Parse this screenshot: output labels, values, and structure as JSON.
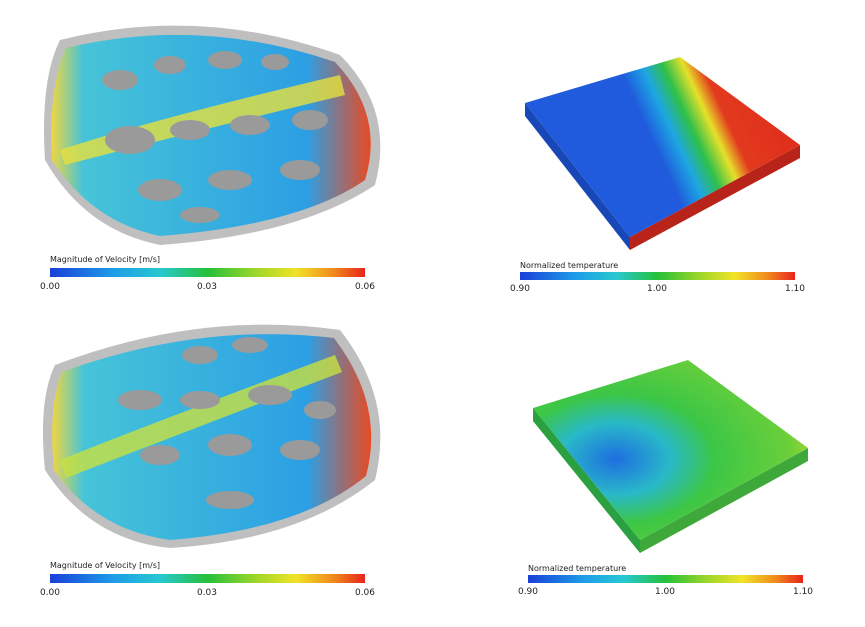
{
  "panels": [
    {
      "colorbar": {
        "title": "Magnitude of Velocity [m/s]",
        "ticks": [
          "0.00",
          "0.03",
          "0.06"
        ]
      }
    },
    {
      "colorbar": {
        "title": "Normalized temperature",
        "ticks": [
          "0.90",
          "1.00",
          "1.10"
        ]
      }
    },
    {
      "colorbar": {
        "title": "Magnitude of Velocity [m/s]",
        "ticks": [
          "0.00",
          "0.03",
          "0.06"
        ]
      }
    },
    {
      "colorbar": {
        "title": "Normalized temperature",
        "ticks": [
          "0.90",
          "1.00",
          "1.10"
        ]
      }
    }
  ]
}
